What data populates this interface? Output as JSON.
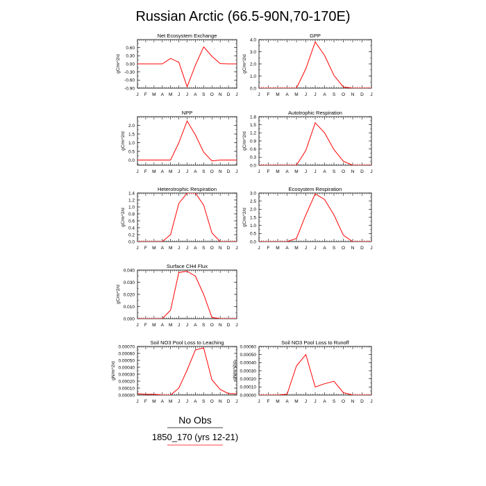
{
  "figure_title": "Russian Arctic (66.5-90N,70-170E)",
  "legend": {
    "entries": [
      {
        "label": "No Obs",
        "color": "#000000"
      },
      {
        "label": "1850_170 (yrs 12-21)",
        "color": "#ff0000"
      }
    ]
  },
  "series_color": "#ff0000",
  "chart_data": [
    {
      "type": "line",
      "title": "Net Ecosystem Exchange",
      "ylabel": "gC/m^2/d",
      "x": [
        "J",
        "F",
        "M",
        "A",
        "M",
        "J",
        "J",
        "A",
        "S",
        "O",
        "N",
        "D",
        "J"
      ],
      "values": [
        0.0,
        0.0,
        0.0,
        0.0,
        0.2,
        0.06,
        -0.85,
        -0.05,
        0.63,
        0.28,
        0.01,
        0.0,
        0.0
      ],
      "ylim": [
        -0.9,
        0.9
      ],
      "yticks": [
        -0.9,
        -0.6,
        -0.3,
        0.0,
        0.3,
        0.6
      ],
      "ytick_labels": [
        "-0.90",
        "-0.60",
        "-0.30",
        "0.00",
        "0.30",
        "0.60"
      ]
    },
    {
      "type": "line",
      "title": "GPP",
      "ylabel": "gC/m^2/d",
      "x": [
        "J",
        "F",
        "M",
        "A",
        "M",
        "J",
        "J",
        "A",
        "S",
        "O",
        "N",
        "D",
        "J"
      ],
      "values": [
        0.0,
        0.0,
        0.0,
        0.0,
        0.0,
        1.6,
        3.8,
        2.7,
        1.05,
        0.1,
        0.0,
        0.0,
        0.0
      ],
      "ylim": [
        0,
        4
      ],
      "yticks": [
        0,
        1,
        2,
        3,
        4
      ],
      "ytick_labels": [
        "0.0",
        "1.0",
        "2.0",
        "3.0",
        "4.0"
      ]
    },
    {
      "type": "line",
      "title": "NPP",
      "ylabel": "gC/m^2/d",
      "x": [
        "J",
        "F",
        "M",
        "A",
        "M",
        "J",
        "J",
        "A",
        "S",
        "O",
        "N",
        "D",
        "J"
      ],
      "values": [
        0.0,
        0.0,
        0.0,
        0.0,
        0.0,
        1.0,
        2.25,
        1.45,
        0.45,
        -0.05,
        0.0,
        0.0,
        0.0
      ],
      "ylim": [
        -0.3,
        2.5
      ],
      "yticks": [
        0,
        0.5,
        1,
        1.5,
        2
      ],
      "ytick_labels": [
        "0.0",
        "0.5",
        "1.0",
        "1.5",
        "2.0"
      ]
    },
    {
      "type": "line",
      "title": "Autotrophic Respiration",
      "ylabel": "gC/m^2/d",
      "x": [
        "J",
        "F",
        "M",
        "A",
        "M",
        "J",
        "J",
        "A",
        "S",
        "O",
        "N",
        "D",
        "J"
      ],
      "values": [
        0.0,
        0.0,
        0.0,
        0.0,
        0.0,
        0.55,
        1.57,
        1.2,
        0.58,
        0.15,
        0.0,
        0.0,
        0.0
      ],
      "ylim": [
        0,
        1.8
      ],
      "yticks": [
        0,
        0.3,
        0.6,
        0.9,
        1.2,
        1.5,
        1.8
      ],
      "ytick_labels": [
        "0.0",
        "0.3",
        "0.6",
        "0.9",
        "1.2",
        "1.5",
        "1.8"
      ]
    },
    {
      "type": "line",
      "title": "Heterotrophic Respiration",
      "ylabel": "gC/m^2/d",
      "x": [
        "J",
        "F",
        "M",
        "A",
        "M",
        "J",
        "J",
        "A",
        "S",
        "O",
        "N",
        "D",
        "J"
      ],
      "values": [
        0.0,
        0.0,
        0.0,
        0.0,
        0.2,
        1.1,
        1.4,
        1.4,
        1.05,
        0.25,
        0.0,
        0.0,
        0.0
      ],
      "ylim": [
        0,
        1.4
      ],
      "yticks": [
        0,
        0.2,
        0.4,
        0.6,
        0.8,
        1.0,
        1.2,
        1.4
      ],
      "ytick_labels": [
        "0.0",
        "0.2",
        "0.4",
        "0.6",
        "0.8",
        "1.0",
        "1.2",
        "1.4"
      ]
    },
    {
      "type": "line",
      "title": "Ecosystem Respiration",
      "ylabel": "gC/m^2/d",
      "x": [
        "J",
        "F",
        "M",
        "A",
        "M",
        "J",
        "J",
        "A",
        "S",
        "O",
        "N",
        "D",
        "J"
      ],
      "values": [
        0.0,
        0.0,
        0.0,
        0.0,
        0.2,
        1.65,
        2.95,
        2.6,
        1.65,
        0.4,
        0.0,
        0.0,
        0.0
      ],
      "ylim": [
        0,
        3
      ],
      "yticks": [
        0,
        0.5,
        1,
        1.5,
        2,
        2.5,
        3
      ],
      "ytick_labels": [
        "0.0",
        "0.5",
        "1.0",
        "1.5",
        "2.0",
        "2.5",
        "3.0"
      ]
    },
    {
      "type": "line",
      "title": "Surface CH4 Flux",
      "ylabel": "gC/m^2/d",
      "x": [
        "J",
        "F",
        "M",
        "A",
        "M",
        "J",
        "J",
        "A",
        "S",
        "O",
        "N",
        "D",
        "J"
      ],
      "values": [
        0.0,
        0.0,
        0.0,
        0.0,
        0.007,
        0.038,
        0.039,
        0.035,
        0.02,
        0.001,
        0.0,
        0.0,
        0.0
      ],
      "ylim": [
        0,
        0.04
      ],
      "yticks": [
        0,
        0.01,
        0.02,
        0.03,
        0.04
      ],
      "ytick_labels": [
        "0.000",
        "0.010",
        "0.020",
        "0.030",
        "0.040"
      ]
    },
    {
      "type": "line",
      "title": "Soil NO3 Pool Loss to Leaching",
      "ylabel": "gN/m^2/d",
      "x": [
        "J",
        "F",
        "M",
        "A",
        "M",
        "J",
        "J",
        "A",
        "S",
        "O",
        "N",
        "D",
        "J"
      ],
      "values": [
        2e-05,
        1e-05,
        1e-05,
        0.0,
        0.0,
        0.0001,
        0.00036,
        0.00065,
        0.00068,
        0.00022,
        8e-05,
        2e-05,
        2e-05
      ],
      "ylim": [
        0,
        0.0007
      ],
      "yticks": [
        0,
        0.0001,
        0.0002,
        0.0003,
        0.0004,
        0.0005,
        0.0006,
        0.0007
      ],
      "ytick_labels": [
        "0.00000",
        "0.00010",
        "0.00020",
        "0.00030",
        "0.00040",
        "0.00050",
        "0.00060",
        "0.00070"
      ]
    },
    {
      "type": "line",
      "title": "Soil NO3 Pool Loss to Runoff",
      "ylabel": "gN/m^2/d",
      "x": [
        "J",
        "F",
        "M",
        "A",
        "M",
        "J",
        "J",
        "A",
        "S",
        "O",
        "N",
        "D",
        "J"
      ],
      "values": [
        0.0,
        0.0,
        0.0,
        1e-05,
        0.00036,
        0.0005,
        0.0001,
        0.00014,
        0.00017,
        3e-05,
        0.0,
        0.0,
        0.0
      ],
      "ylim": [
        0,
        0.0006
      ],
      "yticks": [
        0,
        0.0001,
        0.0002,
        0.0003,
        0.0004,
        0.0005,
        0.0006
      ],
      "ytick_labels": [
        "0.00000",
        "0.00010",
        "0.00020",
        "0.00030",
        "0.00040",
        "0.00050",
        "0.00060"
      ]
    }
  ]
}
